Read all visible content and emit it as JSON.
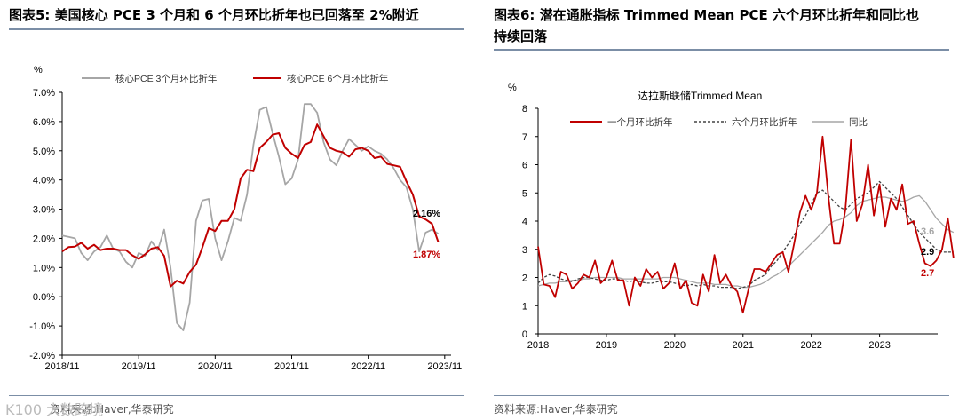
{
  "left": {
    "title": "图表5:   美国核心 PCE 3 个月和 6 个月环比折年也已回落至 2%附近",
    "source": "资料来源:Haver,华泰研究",
    "watermark": "K100 大数跨境",
    "chart_data": {
      "type": "line",
      "ylabel": "%",
      "ylim": [
        -2.0,
        7.0
      ],
      "yticks": [
        "7.0%",
        "6.0%",
        "5.0%",
        "4.0%",
        "3.0%",
        "2.0%",
        "1.0%",
        "0.0%",
        "-1.0%",
        "-2.0%"
      ],
      "ytick_values": [
        7,
        6,
        5,
        4,
        3,
        2,
        1,
        0,
        -1,
        -2
      ],
      "xlim": [
        0,
        61
      ],
      "xticks": [
        "2018/11",
        "2019/11",
        "2020/11",
        "2021/11",
        "2022/11",
        "2023/11"
      ],
      "xtick_positions": [
        0,
        12,
        24,
        36,
        48,
        60
      ],
      "series": [
        {
          "name": "核心PCE 3个月环比折年",
          "color": "#a6a6a6",
          "values": [
            2.1,
            2.05,
            2.0,
            1.5,
            1.25,
            1.55,
            1.7,
            2.1,
            1.65,
            1.55,
            1.2,
            1.0,
            1.5,
            1.4,
            1.9,
            1.6,
            2.3,
            1.0,
            -0.9,
            -1.15,
            -0.2,
            2.6,
            3.3,
            3.35,
            2.0,
            1.25,
            1.9,
            2.7,
            2.6,
            3.5,
            5.2,
            6.4,
            6.5,
            5.6,
            4.8,
            3.85,
            4.05,
            4.7,
            6.6,
            6.6,
            6.3,
            5.3,
            4.7,
            4.5,
            5.0,
            5.4,
            5.2,
            5.0,
            5.15,
            5.0,
            4.9,
            4.7,
            4.4,
            4.0,
            3.75,
            3.0,
            1.55,
            2.2,
            2.3,
            2.16
          ]
        },
        {
          "name": "核心PCE 6个月环比折年",
          "color": "#c00000",
          "values": [
            1.55,
            1.7,
            1.72,
            1.85,
            1.65,
            1.78,
            1.6,
            1.65,
            1.65,
            1.6,
            1.6,
            1.42,
            1.3,
            1.45,
            1.65,
            1.7,
            1.4,
            0.35,
            0.55,
            0.45,
            0.85,
            1.1,
            1.7,
            2.35,
            2.25,
            2.6,
            2.6,
            3.0,
            4.05,
            4.35,
            4.3,
            5.1,
            5.3,
            5.55,
            5.6,
            5.1,
            4.9,
            4.75,
            5.2,
            5.3,
            5.9,
            5.5,
            5.1,
            5.0,
            4.95,
            4.8,
            5.05,
            5.1,
            5.0,
            4.75,
            4.8,
            4.55,
            4.5,
            4.45,
            3.95,
            3.5,
            2.75,
            2.65,
            2.5,
            1.87
          ]
        }
      ],
      "annotations": [
        {
          "text": "2.16%",
          "color": "#000000"
        },
        {
          "text": "1.87%",
          "color": "#c00000"
        }
      ]
    }
  },
  "right": {
    "title_line1": "图表6:   潜在通胀指标 Trimmed Mean PCE 六个月环比折年和同比也",
    "title_line2": "持续回落",
    "source": "资料来源:Haver,华泰研究",
    "chart_data": {
      "type": "line",
      "title": "达拉斯联储Trimmed Mean",
      "ylabel": "%",
      "ylim": [
        0,
        8
      ],
      "yticks": [
        "8",
        "7",
        "6",
        "5",
        "4",
        "3",
        "2",
        "1",
        "0"
      ],
      "ytick_values": [
        8,
        7,
        6,
        5,
        4,
        3,
        2,
        1,
        0
      ],
      "xlim": [
        2018.0,
        2023.85
      ],
      "xticks": [
        "2018",
        "2019",
        "2020",
        "2021",
        "2022",
        "2023"
      ],
      "xtick_positions": [
        2018,
        2019,
        2020,
        2021,
        2022,
        2023
      ],
      "x_start": 2018.0,
      "x_step": 0.0833,
      "series": [
        {
          "name": "一个月环比折年",
          "color": "#c00000",
          "style": "solid",
          "values": [
            3.1,
            1.75,
            1.7,
            1.3,
            2.2,
            2.1,
            1.6,
            1.8,
            2.1,
            2.0,
            2.6,
            1.8,
            2.0,
            2.6,
            1.9,
            1.9,
            1.0,
            2.0,
            1.7,
            2.3,
            2.0,
            2.2,
            1.6,
            1.8,
            2.5,
            1.6,
            1.9,
            1.1,
            1.0,
            2.1,
            1.5,
            2.8,
            1.8,
            2.1,
            1.7,
            1.5,
            0.75,
            1.6,
            2.3,
            2.3,
            2.2,
            2.5,
            2.8,
            2.9,
            2.2,
            3.2,
            4.3,
            4.9,
            4.4,
            5.0,
            7.0,
            4.9,
            3.2,
            3.2,
            4.4,
            6.9,
            4.0,
            4.6,
            6.0,
            4.2,
            5.3,
            3.8,
            4.8,
            4.4,
            5.3,
            3.9,
            4.0,
            3.2,
            2.5,
            2.4,
            2.6,
            3.0,
            4.1,
            2.7
          ]
        },
        {
          "name": "六个月环比折年",
          "color": "#444444",
          "style": "dashed",
          "values": [
            1.8,
            2.0,
            2.1,
            2.05,
            1.95,
            1.9,
            1.85,
            1.95,
            2.0,
            2.0,
            1.95,
            1.9,
            1.9,
            1.95,
            1.95,
            1.9,
            1.85,
            1.9,
            1.85,
            1.8,
            1.8,
            1.85,
            1.85,
            1.85,
            1.8,
            1.75,
            1.7,
            1.75,
            1.7,
            1.75,
            1.7,
            1.7,
            1.65,
            1.65,
            1.65,
            1.6,
            1.65,
            1.7,
            1.9,
            2.0,
            2.1,
            2.4,
            2.6,
            2.9,
            3.2,
            3.5,
            3.9,
            4.2,
            4.6,
            5.0,
            5.1,
            4.9,
            4.7,
            4.5,
            4.4,
            4.6,
            4.8,
            4.9,
            5.0,
            5.2,
            5.4,
            5.2,
            5.0,
            4.8,
            4.5,
            4.2,
            3.9,
            3.6,
            3.4,
            3.2,
            3.0,
            2.9,
            2.9,
            2.9
          ]
        },
        {
          "name": "同比",
          "color": "#a6a6a6",
          "style": "solid",
          "values": [
            1.7,
            1.75,
            1.8,
            1.8,
            1.85,
            1.85,
            1.9,
            1.9,
            1.95,
            1.95,
            2.0,
            2.0,
            2.0,
            2.0,
            2.0,
            1.95,
            1.95,
            1.95,
            1.95,
            1.95,
            1.95,
            1.95,
            2.0,
            2.0,
            2.0,
            1.95,
            1.9,
            1.85,
            1.8,
            1.8,
            1.8,
            1.75,
            1.75,
            1.75,
            1.7,
            1.7,
            1.65,
            1.65,
            1.7,
            1.75,
            1.85,
            2.0,
            2.1,
            2.25,
            2.4,
            2.6,
            2.8,
            3.0,
            3.2,
            3.4,
            3.6,
            3.85,
            4.0,
            4.05,
            4.15,
            4.3,
            4.55,
            4.7,
            4.75,
            4.8,
            4.85,
            4.85,
            4.8,
            4.75,
            4.7,
            4.75,
            4.85,
            4.9,
            4.7,
            4.4,
            4.1,
            3.9,
            3.7,
            3.6
          ]
        }
      ],
      "annotations": [
        {
          "text": "3.6",
          "color": "#a6a6a6"
        },
        {
          "text": "2.9",
          "color": "#000000"
        },
        {
          "text": "2.7",
          "color": "#c00000"
        }
      ]
    }
  }
}
